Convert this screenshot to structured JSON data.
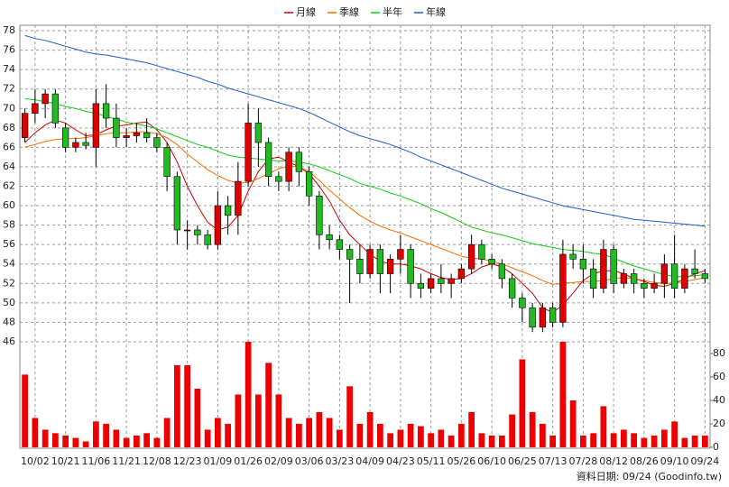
{
  "chart_data": {
    "type": "candlestick",
    "categories": [
      null,
      "10/02",
      null,
      null,
      "10/21",
      null,
      null,
      "11/06",
      null,
      null,
      "11/21",
      null,
      null,
      "12/08",
      null,
      null,
      "12/23",
      null,
      null,
      "01/09",
      null,
      null,
      "01/26",
      null,
      null,
      "02/09",
      null,
      null,
      "03/06",
      null,
      null,
      "03/23",
      null,
      null,
      "04/09",
      null,
      null,
      "04/23",
      null,
      null,
      "05/11",
      null,
      null,
      "05/26",
      null,
      null,
      "06/10",
      null,
      null,
      "06/25",
      null,
      null,
      "07/13",
      null,
      null,
      "07/28",
      null,
      null,
      "08/12",
      null,
      null,
      "08/26",
      null,
      null,
      "09/10",
      null,
      null,
      "09/24"
    ],
    "open": [
      67,
      69.5,
      70.5,
      71.5,
      68,
      66,
      66.5,
      66,
      70.5,
      69,
      67,
      67.2,
      67.5,
      67,
      66,
      63,
      57.5,
      57.5,
      57,
      56,
      60,
      59,
      62.5,
      68.5,
      66.5,
      63,
      62.5,
      65.5,
      63.5,
      61,
      57,
      56.5,
      55.5,
      54.5,
      53,
      55.5,
      53,
      54.5,
      55.5,
      52,
      51.5,
      52.5,
      52,
      52.5,
      53.5,
      56,
      54.5,
      54,
      52.5,
      50.5,
      49.5,
      47.5,
      49.5,
      48,
      55,
      54.5,
      53.5,
      51.5,
      55.5,
      52,
      53,
      52,
      51.5,
      52,
      54,
      51.5,
      53.5,
      53
    ],
    "high": [
      70,
      72,
      72,
      72,
      68.5,
      67,
      67.5,
      72,
      72.5,
      70.5,
      68,
      68.5,
      69,
      67.5,
      66.5,
      63.5,
      58.5,
      58,
      57.5,
      61.5,
      61,
      64.5,
      70.5,
      70,
      67,
      63.5,
      66,
      66,
      64,
      61.5,
      58,
      57,
      56,
      56,
      56,
      56,
      55,
      57,
      56,
      53,
      53,
      54,
      53,
      54,
      57,
      56.5,
      55,
      54.5,
      53,
      51,
      50,
      50,
      50,
      56.5,
      56,
      56,
      54.5,
      56.5,
      56,
      53.5,
      53.5,
      52.5,
      53,
      55,
      57,
      54,
      55.5,
      53.5
    ],
    "low": [
      66.5,
      68.5,
      69,
      68,
      65.5,
      65.5,
      65.8,
      64,
      68,
      66,
      66,
      66.5,
      66.5,
      65.5,
      61.5,
      56,
      55.5,
      56,
      55.5,
      55.5,
      57,
      57,
      62,
      64,
      62,
      61.5,
      61.5,
      62,
      60,
      55.5,
      55.5,
      54.5,
      50,
      52,
      52.5,
      51,
      51,
      53,
      50.5,
      50.5,
      51,
      51,
      50.5,
      52,
      53,
      54,
      53.5,
      51.5,
      49.5,
      48,
      47,
      47,
      47.5,
      47.5,
      53.5,
      52,
      50.5,
      51,
      51,
      51.5,
      51,
      50.5,
      51,
      50.5,
      50.5,
      51,
      52.5,
      52
    ],
    "close": [
      69.5,
      70.5,
      71.5,
      68.5,
      66,
      66.5,
      66.2,
      70.5,
      69,
      67,
      67.2,
      67.5,
      67,
      66,
      63,
      57.5,
      57.5,
      57,
      56,
      60,
      59,
      62.5,
      68.5,
      66.5,
      63,
      62.5,
      65.5,
      63.5,
      61,
      57,
      56.5,
      55.5,
      54.5,
      53,
      55.5,
      53,
      54.5,
      55.5,
      52,
      51.5,
      52.5,
      52,
      52.5,
      53.5,
      56,
      54.5,
      54,
      52.5,
      50.5,
      49.5,
      47.5,
      49.5,
      48,
      55,
      54.5,
      53.5,
      51.5,
      55.5,
      52,
      53,
      52,
      51.5,
      52,
      54,
      51.5,
      53.5,
      53,
      52.5
    ],
    "up_color": "#e00000",
    "down_color": "#22bb22",
    "volume": {
      "axis": "y2",
      "color": "#ee0000",
      "values": [
        62,
        25,
        15,
        12,
        10,
        8,
        5,
        22,
        20,
        15,
        8,
        10,
        12,
        8,
        25,
        70,
        70,
        50,
        15,
        25,
        20,
        45,
        90,
        45,
        72,
        45,
        25,
        20,
        25,
        30,
        25,
        15,
        52,
        20,
        30,
        20,
        12,
        15,
        20,
        18,
        12,
        15,
        10,
        20,
        30,
        12,
        10,
        10,
        28,
        75,
        30,
        20,
        10,
        90,
        40,
        10,
        12,
        35,
        12,
        15,
        12,
        8,
        10,
        15,
        22,
        8,
        10,
        10
      ]
    },
    "series": [
      {
        "name": "月線",
        "color": "#cc0000",
        "values": [
          66.5,
          67.5,
          68.3,
          68.8,
          68.5,
          67.8,
          67.2,
          67.3,
          67.8,
          68.2,
          68.3,
          68.5,
          68.6,
          67.8,
          66.5,
          64.5,
          62,
          60,
          58.3,
          57.5,
          57.8,
          59,
          61.5,
          63.5,
          64.8,
          65,
          64.5,
          64,
          63.3,
          62,
          60.5,
          58.5,
          57,
          56,
          55,
          54.3,
          54,
          54,
          53.8,
          53.5,
          53,
          52.6,
          52.4,
          52.5,
          53,
          53.7,
          54,
          53.7,
          53,
          52,
          51,
          49.5,
          49,
          49.8,
          51,
          52.3,
          53,
          53.3,
          53.3,
          53,
          52.5,
          52.2,
          51.8,
          51.7,
          52,
          52.5,
          53,
          53.3
        ]
      },
      {
        "name": "季線",
        "color": "#ff6a00",
        "values": [
          66,
          66.3,
          66.6,
          66.8,
          66.9,
          66.9,
          67,
          67.2,
          67.4,
          67.5,
          67.5,
          67.6,
          67.6,
          67.4,
          67,
          66.3,
          65.3,
          64.5,
          63.7,
          63.1,
          62.6,
          62.3,
          62.4,
          62.8,
          63.3,
          63.8,
          64.1,
          64,
          63.5,
          62.6,
          61.6,
          60.7,
          59.8,
          59,
          58.4,
          57.9,
          57.5,
          57.2,
          56.8,
          56.4,
          56,
          55.6,
          55.2,
          54.8,
          54.6,
          54.5,
          54.3,
          54,
          53.6,
          53.2,
          52.8,
          52.3,
          51.9,
          52,
          52.1,
          52.2,
          52.2,
          52.3,
          52.5,
          52.6,
          52.5,
          52.3,
          52.1,
          52,
          52,
          52.2,
          52.4,
          52.6
        ]
      },
      {
        "name": "半年",
        "color": "#11cc11",
        "values": [
          71,
          70.9,
          70.7,
          70.5,
          70.2,
          70,
          69.7,
          69.5,
          69.2,
          68.9,
          68.6,
          68.4,
          68.2,
          67.9,
          67.5,
          67.1,
          66.7,
          66.3,
          66,
          65.6,
          65.2,
          65,
          64.9,
          64.8,
          64.7,
          64.6,
          64.6,
          64.5,
          64.3,
          64,
          63.6,
          63.2,
          62.8,
          62.3,
          62,
          61.7,
          61.3,
          61,
          60.6,
          60.2,
          59.7,
          59.3,
          58.8,
          58.3,
          57.8,
          57.5,
          57.2,
          57,
          56.7,
          56.4,
          56.1,
          55.9,
          55.7,
          55.5,
          55.4,
          55.3,
          55.1,
          55,
          54.6,
          54.2,
          53.8,
          53.5,
          53.2,
          52.9,
          52.7,
          52.7,
          52.8,
          52.9
        ]
      },
      {
        "name": "年線",
        "color": "#1a5fcc",
        "values": [
          77.5,
          77.2,
          77,
          76.7,
          76.4,
          76.1,
          75.8,
          75.6,
          75.5,
          75.3,
          75.1,
          74.9,
          74.7,
          74.4,
          74.1,
          73.8,
          73.5,
          73.2,
          72.8,
          72.5,
          72.1,
          71.8,
          71.5,
          71.2,
          70.9,
          70.6,
          70.3,
          70,
          69.6,
          69.1,
          68.6,
          68.1,
          67.6,
          67.2,
          66.9,
          66.6,
          66.3,
          65.9,
          65.5,
          65,
          64.6,
          64.2,
          63.8,
          63.4,
          63,
          62.6,
          62.2,
          61.8,
          61.5,
          61.2,
          60.9,
          60.6,
          60.3,
          60,
          59.8,
          59.6,
          59.4,
          59.2,
          59,
          58.8,
          58.6,
          58.5,
          58.4,
          58.3,
          58.2,
          58.1,
          58,
          57.9
        ]
      }
    ],
    "ylim": [
      35.05,
      78.56
    ],
    "yticks": [
      46,
      48,
      50,
      52,
      54,
      56,
      58,
      60,
      62,
      64,
      66,
      68,
      70,
      72,
      74,
      76,
      78
    ],
    "y2lim": [
      -0.8,
      360
    ],
    "y2ticks": [
      0,
      20,
      40,
      60,
      80
    ],
    "grid": true,
    "legend": "top",
    "source": "資料日期: 09/24 (Goodinfo.tw)"
  }
}
